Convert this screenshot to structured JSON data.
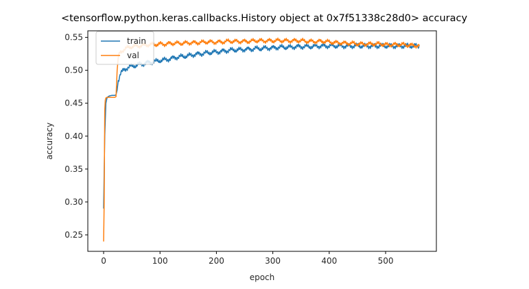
{
  "chart_data": {
    "type": "line",
    "title": "<tensorflow.python.keras.callbacks.History object at 0x7f51338c28d0> accuracy",
    "xlabel": "epoch",
    "ylabel": "accuracy",
    "xlim": [
      -28,
      590
    ],
    "ylim": [
      0.225,
      0.56
    ],
    "xticks": [
      0,
      100,
      200,
      300,
      400,
      500
    ],
    "yticks": [
      0.25,
      0.3,
      0.35,
      0.4,
      0.45,
      0.5,
      0.55
    ],
    "ytick_labels": [
      "0.25",
      "0.30",
      "0.35",
      "0.40",
      "0.45",
      "0.50",
      "0.55"
    ],
    "legend_position": "upper-left",
    "grid": false,
    "series": [
      {
        "name": "train",
        "color": "#1f77b4",
        "x": [
          0,
          2,
          4,
          6,
          8,
          10,
          15,
          20,
          22,
          24,
          26,
          28,
          30,
          35,
          40,
          45,
          50,
          60,
          70,
          80,
          90,
          100,
          110,
          120,
          130,
          140,
          150,
          160,
          170,
          180,
          190,
          200,
          210,
          220,
          230,
          240,
          250,
          260,
          270,
          280,
          290,
          300,
          310,
          320,
          330,
          340,
          350,
          360,
          370,
          380,
          390,
          400,
          410,
          420,
          430,
          440,
          450,
          460,
          470,
          480,
          490,
          500,
          510,
          520,
          530,
          540,
          550,
          560
        ],
        "y": [
          0.29,
          0.4,
          0.45,
          0.458,
          0.46,
          0.461,
          0.462,
          0.462,
          0.463,
          0.47,
          0.485,
          0.49,
          0.495,
          0.5,
          0.503,
          0.505,
          0.506,
          0.508,
          0.51,
          0.512,
          0.513,
          0.515,
          0.516,
          0.518,
          0.52,
          0.521,
          0.522,
          0.524,
          0.525,
          0.526,
          0.527,
          0.528,
          0.529,
          0.53,
          0.531,
          0.531,
          0.532,
          0.532,
          0.533,
          0.533,
          0.534,
          0.534,
          0.535,
          0.535,
          0.535,
          0.536,
          0.536,
          0.536,
          0.536,
          0.537,
          0.537,
          0.537,
          0.537,
          0.537,
          0.537,
          0.537,
          0.537,
          0.537,
          0.537,
          0.537,
          0.537,
          0.537,
          0.537,
          0.537,
          0.537,
          0.537,
          0.537,
          0.537
        ]
      },
      {
        "name": "val",
        "color": "#ff7f0e",
        "x": [
          0,
          1,
          2,
          3,
          4,
          6,
          10,
          15,
          20,
          22,
          24,
          26,
          28,
          30,
          35,
          40,
          45,
          50,
          60,
          70,
          80,
          90,
          100,
          110,
          120,
          130,
          140,
          150,
          160,
          170,
          180,
          190,
          200,
          210,
          220,
          230,
          240,
          250,
          260,
          270,
          280,
          290,
          300,
          310,
          320,
          330,
          340,
          350,
          360,
          370,
          380,
          390,
          400,
          410,
          420,
          430,
          440,
          450,
          460,
          470,
          480,
          490,
          500,
          510,
          520,
          530,
          540,
          550,
          560
        ],
        "y": [
          0.24,
          0.3,
          0.44,
          0.455,
          0.458,
          0.459,
          0.459,
          0.459,
          0.459,
          0.46,
          0.5,
          0.52,
          0.525,
          0.528,
          0.531,
          0.533,
          0.535,
          0.536,
          0.537,
          0.538,
          0.539,
          0.539,
          0.54,
          0.54,
          0.541,
          0.541,
          0.541,
          0.542,
          0.542,
          0.542,
          0.543,
          0.543,
          0.543,
          0.543,
          0.544,
          0.544,
          0.544,
          0.544,
          0.544,
          0.545,
          0.545,
          0.545,
          0.545,
          0.545,
          0.545,
          0.545,
          0.545,
          0.545,
          0.544,
          0.544,
          0.544,
          0.544,
          0.543,
          0.542,
          0.542,
          0.541,
          0.541,
          0.54,
          0.54,
          0.54,
          0.54,
          0.54,
          0.539,
          0.539,
          0.539,
          0.539,
          0.538,
          0.538,
          0.537
        ]
      }
    ]
  }
}
